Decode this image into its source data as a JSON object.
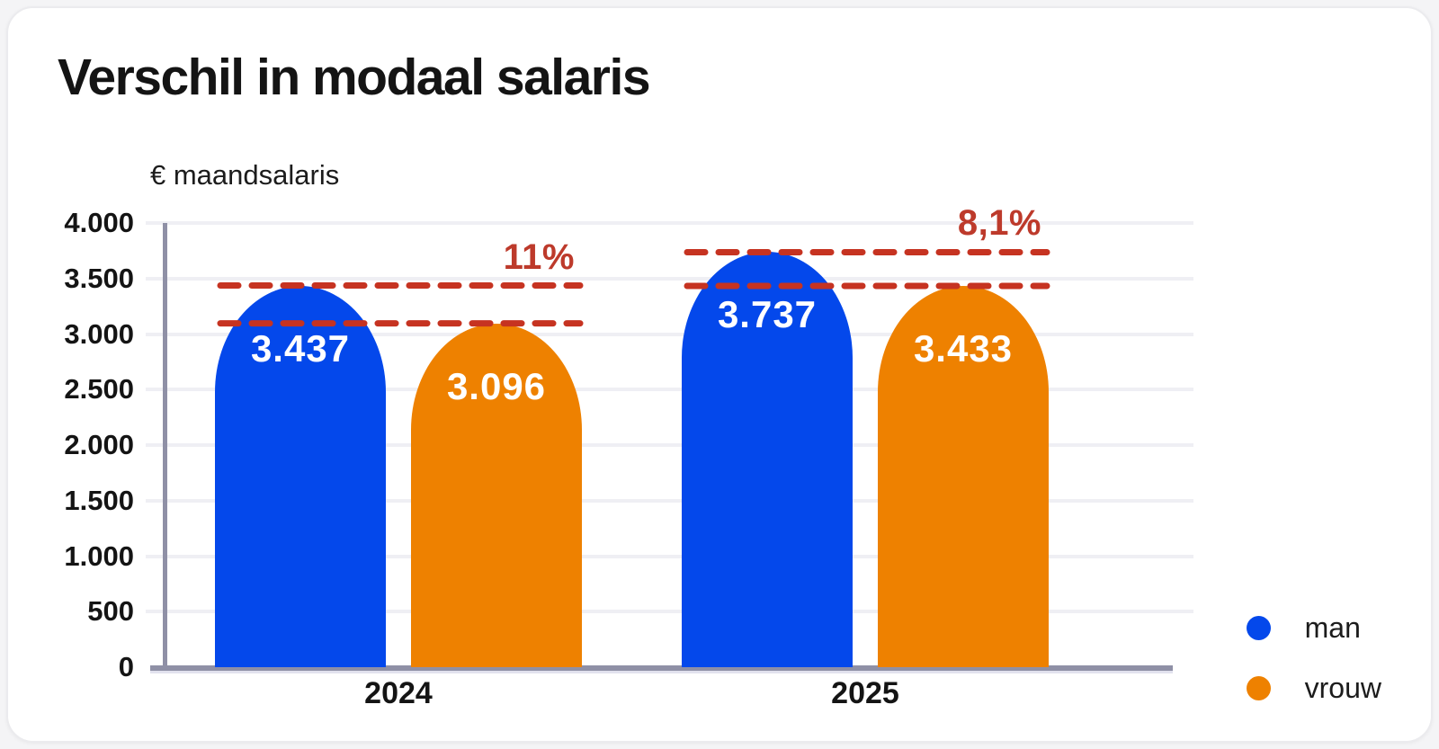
{
  "card": {
    "title": "Verschil in modaal salaris"
  },
  "colors": {
    "man": "#0448eb",
    "vrouw": "#ee8100",
    "dash_line": "#c63321",
    "pct_text": "#bd3a2b",
    "axis": "#8f90a6",
    "gridline": "#efeff4",
    "text": "#141414",
    "bar_value_text": "#ffffff"
  },
  "chart_data": {
    "type": "bar",
    "title": "Verschil in modaal salaris",
    "xlabel": "",
    "ylabel": "€ maandsalaris",
    "categories": [
      "2024",
      "2025"
    ],
    "series": [
      {
        "name": "man",
        "values": [
          3437,
          3737
        ],
        "value_labels": [
          "3.437",
          "3.737"
        ]
      },
      {
        "name": "vrouw",
        "values": [
          3096,
          3433
        ],
        "value_labels": [
          "3.096",
          "3.433"
        ]
      }
    ],
    "annotations": [
      {
        "group": "2024",
        "label": "11%",
        "from": 3096,
        "to": 3437
      },
      {
        "group": "2025",
        "label": "8,1%",
        "from": 3433,
        "to": 3737
      }
    ],
    "ylim": [
      0,
      4000
    ],
    "yticks": [
      0,
      500,
      1000,
      1500,
      2000,
      2500,
      3000,
      3500,
      4000
    ],
    "ytick_labels": [
      "0",
      "500",
      "1.000",
      "1.500",
      "2.000",
      "2.500",
      "3.000",
      "3.500",
      "4.000"
    ],
    "grid": true,
    "legend_position": "bottom-right"
  },
  "legend": {
    "items": [
      {
        "label": "man",
        "color_key": "man"
      },
      {
        "label": "vrouw",
        "color_key": "vrouw"
      }
    ]
  }
}
